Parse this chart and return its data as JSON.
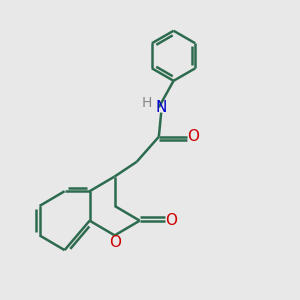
{
  "bg_color": "#e8e8e8",
  "bond_color": "#2d6b4f",
  "N_color": "#0000cc",
  "O_color": "#cc0000",
  "H_color": "#888888",
  "line_width": 1.8,
  "font_size": 10,
  "figsize": [
    3.0,
    3.0
  ],
  "dpi": 100,
  "xlim": [
    0,
    10
  ],
  "ylim": [
    0,
    10
  ]
}
